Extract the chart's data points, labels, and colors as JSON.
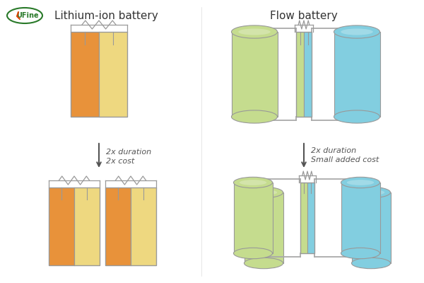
{
  "title_left": "Lithium-ion battery",
  "title_right": "Flow battery",
  "arrow_left_text1": "2x duration",
  "arrow_left_text2": "2x cost",
  "arrow_right_text1": "2x duration",
  "arrow_right_text2": "Small added cost",
  "bg_color": "#ffffff",
  "text_color": "#555555",
  "orange_dark": "#E8923A",
  "orange_light": "#EED880",
  "green_light": "#C5DC8E",
  "blue_light": "#82CEE0",
  "connector_color": "#aaaaaa",
  "logo_oval_color": "#2a7a2a",
  "logo_text_color": "#2a7a2a",
  "logo_bolt_color": "#dd4400",
  "edge_color": "#999999"
}
